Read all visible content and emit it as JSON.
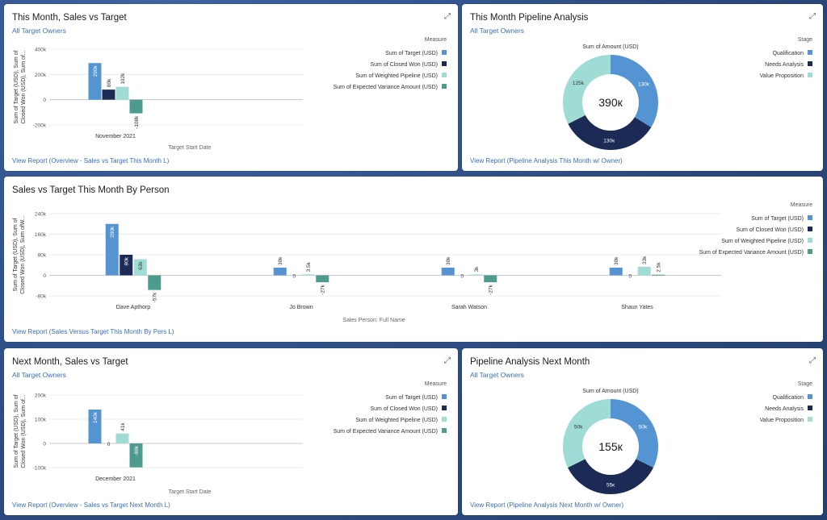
{
  "legend_colors": [
    "#5594d2",
    "#1c2b55",
    "#9fdcd5",
    "#4d9a8f"
  ],
  "legend_names": [
    "Sum of Target (USD)",
    "Sum of Closed Won (USD)",
    "Sum of Weighted Pipeline (USD)",
    "Sum of Expected Variance Amount (USD)"
  ],
  "card1": {
    "title": "This Month, Sales vs Target",
    "subtitle": "All Target Owners",
    "expand_icon": "expand-icon",
    "view_link": "View Report (Overview - Sales vs Target This Month L)"
  },
  "card2": {
    "title": "This Month Pipeline Analysis",
    "subtitle": "All Target Owners",
    "expand_icon": "expand-icon",
    "view_link": "View Report (Pipeline Analysis This Month w/ Owner)"
  },
  "card3": {
    "title": "Sales vs Target This Month By Person",
    "view_link": "View Report (Sales Versus Target This Month By Pers L)"
  },
  "card4": {
    "title": "Next Month, Sales vs Target",
    "subtitle": "All Target Owners",
    "expand_icon": "expand-icon",
    "view_link": "View Report (Overview - Sales vs Target Next Month L)"
  },
  "card5": {
    "title": "Pipeline Analysis Next Month",
    "subtitle": "All Target Owners",
    "expand_icon": "expand-icon",
    "view_link": "View Report (Pipeline Analysis Next Month w/ Owner)"
  },
  "chart_data": [
    {
      "type": "bar",
      "title": "This Month, Sales vs Target",
      "ylabel": "Sum of Target (USD), Sum of Closed Won (USD), Sum of...",
      "xlabel": "Target Start Date",
      "legend_title": "Measure",
      "categories": [
        "November 2021"
      ],
      "ylim": [
        -200000,
        400000
      ],
      "yticks": [
        -200000,
        0,
        200000,
        400000
      ],
      "ytick_labels": [
        "-200k",
        "0",
        "200k",
        "400k"
      ],
      "series": [
        {
          "name": "Sum of Target (USD)",
          "values": [
            290000
          ],
          "labels": [
            "290k"
          ]
        },
        {
          "name": "Sum of Closed Won (USD)",
          "values": [
            80000
          ],
          "labels": [
            "80k"
          ]
        },
        {
          "name": "Sum of Weighted Pipeline (USD)",
          "values": [
            102000
          ],
          "labels": [
            "102k"
          ]
        },
        {
          "name": "Sum of Expected Variance Amount (USD)",
          "values": [
            -108000
          ],
          "labels": [
            "-108k"
          ]
        }
      ]
    },
    {
      "type": "pie",
      "title": "Sum of Amount (USD)",
      "center_label": "390к",
      "legend_title": "Stage",
      "slices": [
        {
          "name": "Qualification",
          "value": 130000,
          "label": "130k",
          "color": "#5594d2"
        },
        {
          "name": "Needs Analysis",
          "value": 130000,
          "label": "130к",
          "color": "#1c2b55"
        },
        {
          "name": "Value Proposition",
          "value": 125000,
          "label": "125k",
          "color": "#9fdcd5"
        }
      ]
    },
    {
      "type": "bar",
      "title": "Sales vs Target This Month By Person",
      "ylabel": "Sum of Target (USD), Sum of Closed Won (USD), Sum ofW...",
      "xlabel": "Sales Person: Full Name",
      "legend_title": "Measure",
      "categories": [
        "Dave Apthorp",
        "Jo Brown",
        "Sarah Watson",
        "Shaun Yates"
      ],
      "ylim": [
        -80000,
        240000
      ],
      "yticks": [
        -80000,
        0,
        80000,
        160000,
        240000
      ],
      "ytick_labels": [
        "-80k",
        "0",
        "80k",
        "160k",
        "240k"
      ],
      "series": [
        {
          "name": "Sum of Target (USD)",
          "values": [
            200000,
            30000,
            30000,
            30000
          ],
          "labels": [
            "200k",
            "30k",
            "30k",
            "30k"
          ]
        },
        {
          "name": "Sum of Closed Won (USD)",
          "values": [
            80000,
            0,
            0,
            0
          ],
          "labels": [
            "80k",
            "0",
            "0",
            "0"
          ]
        },
        {
          "name": "Sum of Weighted Pipeline (USD)",
          "values": [
            63000,
            3500,
            3000,
            33000
          ],
          "labels": [
            "63k",
            "3.5k",
            "3k",
            "33k"
          ]
        },
        {
          "name": "Sum of Expected Variance Amount (USD)",
          "values": [
            -57000,
            -27000,
            -27000,
            2500
          ],
          "labels": [
            "-57k",
            "-27k",
            "-27k",
            "2.5k"
          ]
        }
      ]
    },
    {
      "type": "bar",
      "title": "Next Month, Sales vs Target",
      "ylabel": "Sum of Target (USD), Sum of Closed Won (USD), Sum of...",
      "xlabel": "Target Start Date",
      "legend_title": "Measure",
      "categories": [
        "December 2021"
      ],
      "ylim": [
        -100000,
        200000
      ],
      "yticks": [
        -100000,
        0,
        100000,
        200000
      ],
      "ytick_labels": [
        "-100k",
        "0",
        "100k",
        "200k"
      ],
      "series": [
        {
          "name": "Sum of Target (USD)",
          "values": [
            140000
          ],
          "labels": [
            "140k"
          ]
        },
        {
          "name": "Sum of Closed Won (USD)",
          "values": [
            0
          ],
          "labels": [
            "0"
          ]
        },
        {
          "name": "Sum of Weighted Pipeline (USD)",
          "values": [
            41000
          ],
          "labels": [
            "41k"
          ]
        },
        {
          "name": "Sum of Expected Variance Amount (USD)",
          "values": [
            -99000
          ],
          "labels": [
            "-99k"
          ]
        }
      ]
    },
    {
      "type": "pie",
      "title": "Sum of Amount (USD)",
      "center_label": "155к",
      "legend_title": "Stage",
      "slices": [
        {
          "name": "Qualification",
          "value": 50000,
          "label": "50k",
          "color": "#5594d2"
        },
        {
          "name": "Needs Analysis",
          "value": 55000,
          "label": "55к",
          "color": "#1c2b55"
        },
        {
          "name": "Value Proposition",
          "value": 50000,
          "label": "50k",
          "color": "#9fdcd5"
        }
      ]
    }
  ]
}
